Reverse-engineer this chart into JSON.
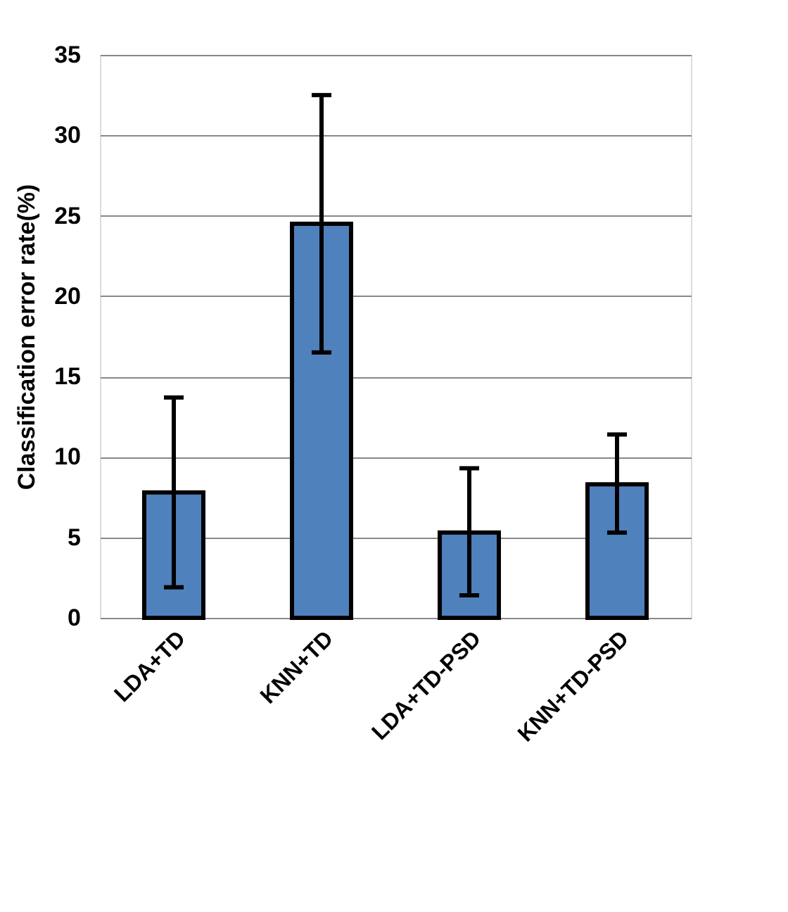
{
  "chart_data": {
    "type": "bar",
    "ylabel": "Classification error rate(%)",
    "categories": [
      "LDA+TD",
      "KNN+TD",
      "LDA+TD-PSD",
      "KNN+TD-PSD"
    ],
    "values": [
      7.8,
      24.5,
      5.3,
      8.3
    ],
    "errors": [
      [
        1.9,
        13.7
      ],
      [
        16.5,
        32.5
      ],
      [
        1.4,
        9.3
      ],
      [
        5.3,
        11.4
      ]
    ],
    "color": "#4f81bd",
    "ylim": [
      0,
      35
    ],
    "yticks": [
      0,
      5,
      10,
      15,
      20,
      25,
      30,
      35
    ],
    "grid": "y"
  }
}
